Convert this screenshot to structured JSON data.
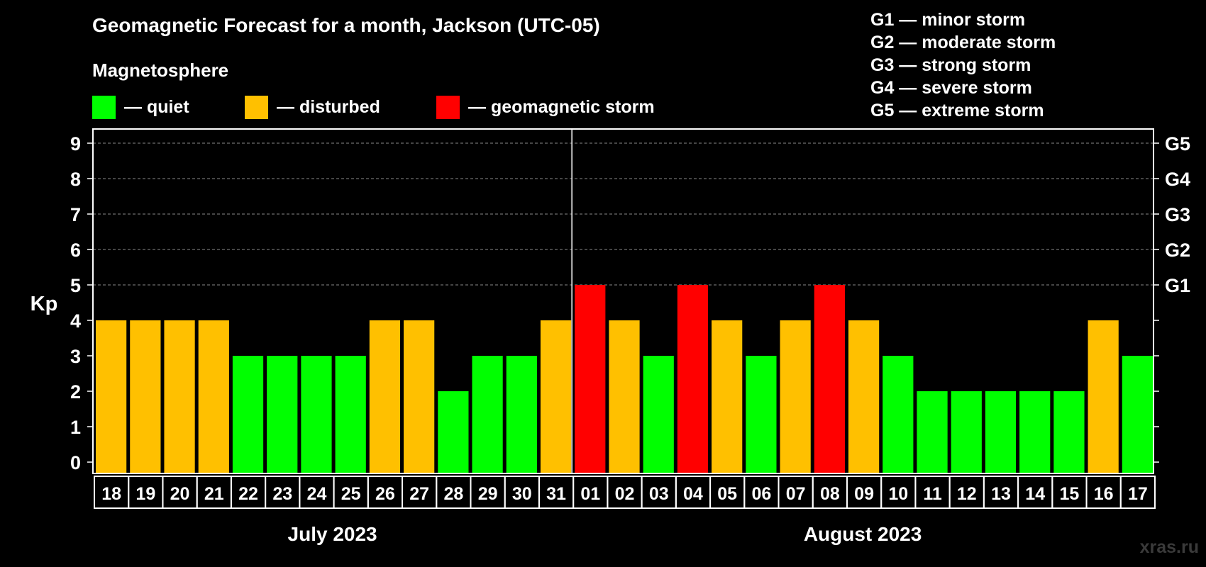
{
  "header": {
    "title": "Geomagnetic Forecast for a month, Jackson (UTC-05)",
    "subtitle": "Magnetosphere"
  },
  "legend": [
    {
      "label": "— quiet",
      "color": "#00ff00"
    },
    {
      "label": "— disturbed",
      "color": "#ffc000"
    },
    {
      "label": "— geomagnetic storm",
      "color": "#ff0000"
    }
  ],
  "g_legend": [
    "G1 — minor storm",
    "G2 — moderate storm",
    "G3 — strong storm",
    "G4 — severe storm",
    "G5 — extreme storm"
  ],
  "watermark": "xras.ru",
  "chart_data": {
    "type": "bar",
    "ylabel": "Kp",
    "ylim": [
      0,
      9
    ],
    "y_ticks": [
      "0",
      "1",
      "2",
      "3",
      "4",
      "5",
      "6",
      "7",
      "8",
      "9"
    ],
    "right_ticks": [
      {
        "value": 5,
        "label": "G1"
      },
      {
        "value": 6,
        "label": "G2"
      },
      {
        "value": 7,
        "label": "G3"
      },
      {
        "value": 8,
        "label": "G4"
      },
      {
        "value": 9,
        "label": "G5"
      }
    ],
    "grid": "dashed horizontal at 5, 6, 7, 8, 9",
    "categories": [
      "18",
      "19",
      "20",
      "21",
      "22",
      "23",
      "24",
      "25",
      "26",
      "27",
      "28",
      "29",
      "30",
      "31",
      "01",
      "02",
      "03",
      "04",
      "05",
      "06",
      "07",
      "08",
      "09",
      "10",
      "11",
      "12",
      "13",
      "14",
      "15",
      "16",
      "17"
    ],
    "values": [
      4,
      4,
      4,
      4,
      3,
      3,
      3,
      3,
      4,
      4,
      2,
      3,
      3,
      4,
      5,
      4,
      3,
      5,
      4,
      3,
      4,
      5,
      4,
      3,
      2,
      2,
      2,
      2,
      2,
      4,
      3
    ],
    "months": [
      {
        "label": "July 2023",
        "first_index": 0,
        "last_index": 13
      },
      {
        "label": "August 2023",
        "first_index": 14,
        "last_index": 30
      }
    ],
    "colors": {
      "quiet": "#00ff00",
      "disturbed": "#ffc000",
      "storm": "#ff0000"
    }
  }
}
